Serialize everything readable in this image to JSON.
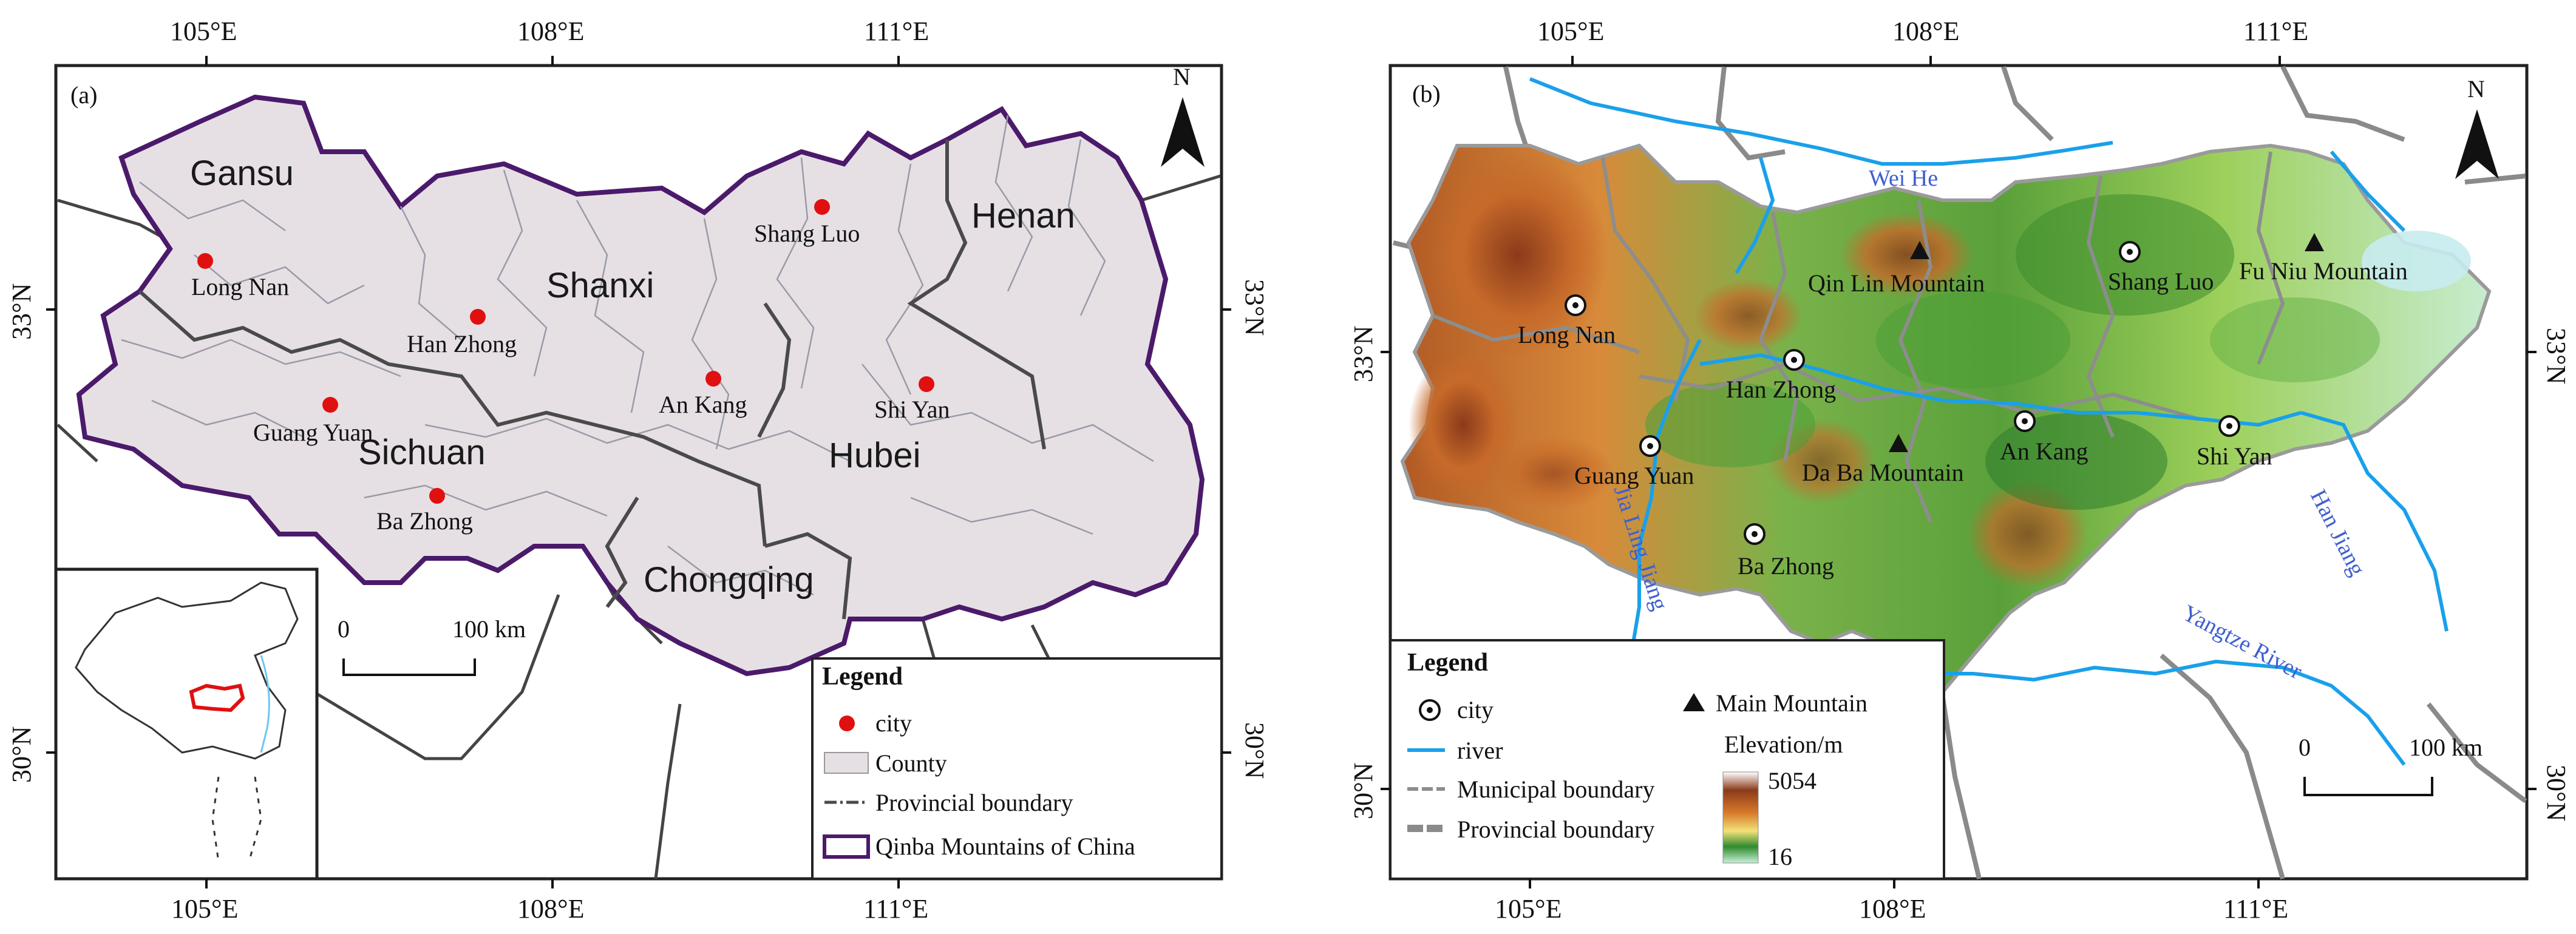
{
  "colors": {
    "county_fill": "#e6e0e4",
    "qinba_border": "#4b1a6b",
    "city_red": "#e01010",
    "river_blue": "#1aa0ea",
    "river_label": "#3f5fd0",
    "boundary_gray": "#8a8a8a"
  },
  "panel_a": {
    "label": "(a)",
    "north": "N",
    "top_ticks": [
      "105°E",
      "108°E",
      "111°E"
    ],
    "bottom_ticks": [
      "105°E",
      "108°E",
      "111°E"
    ],
    "left_ticks": [
      "33°N",
      "30°N"
    ],
    "right_ticks": [
      "33°N",
      "30°N"
    ],
    "provinces": {
      "gansu": "Gansu",
      "shanxi": "Shanxi",
      "henan": "Henan",
      "sichuan": "Sichuan",
      "hubei": "Hubei",
      "chongqing": "Chongqing"
    },
    "cities": {
      "long_nan": "Long Nan",
      "han_zhong": "Han Zhong",
      "shang_luo": "Shang Luo",
      "an_kang": "An Kang",
      "shi_yan": "Shi Yan",
      "guang_yuan": "Guang Yuan",
      "ba_zhong": "Ba Zhong"
    },
    "scale": {
      "zero": "0",
      "end": "100 km"
    },
    "legend": {
      "title": "Legend",
      "city": "city",
      "county": "County",
      "provincial": "Provincial boundary",
      "qinba": "Qinba Mountains of China"
    }
  },
  "panel_b": {
    "label": "(b)",
    "north": "N",
    "top_ticks": [
      "105°E",
      "108°E",
      "111°E"
    ],
    "bottom_ticks": [
      "105°E",
      "108°E",
      "111°E"
    ],
    "left_ticks": [
      "33°N",
      "30°N"
    ],
    "right_ticks": [
      "33°N",
      "30°N"
    ],
    "rivers": {
      "wei_he": "Wei He",
      "han_jiang": "Han Jiang",
      "jialing": "Jia Ling Jiang",
      "yangtze": "Yangtze River"
    },
    "mountains": {
      "qin_lin": "Qin Lin Mountain",
      "fu_niu": "Fu Niu Mountain",
      "da_ba": "Da Ba Mountain"
    },
    "cities": {
      "long_nan": "Long Nan",
      "han_zhong": "Han Zhong",
      "shang_luo": "Shang Luo",
      "an_kang": "An Kang",
      "shi_yan": "Shi Yan",
      "guang_yuan": "Guang Yuan",
      "ba_zhong": "Ba Zhong"
    },
    "scale": {
      "zero": "0",
      "end": "100 km"
    },
    "legend": {
      "title": "Legend",
      "city": "city",
      "main_mountain": "Main Mountain",
      "river": "river",
      "elevation": "Elevation/m",
      "elev_max": "5054",
      "elev_min": "16",
      "municipal": "Municipal boundary",
      "provincial": "Provincial boundary"
    }
  }
}
